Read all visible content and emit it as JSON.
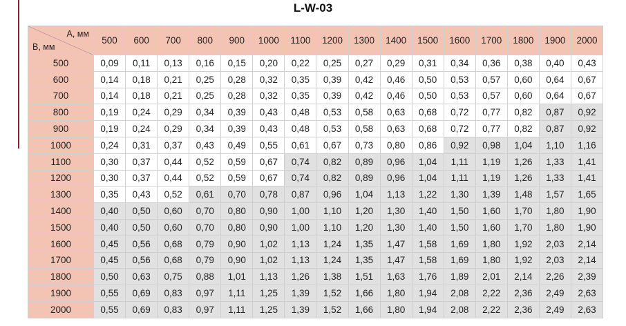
{
  "title": "L-W-03",
  "table": {
    "corner": {
      "col_label": "A, мм",
      "row_label": "B, мм"
    },
    "columns": [
      "500",
      "600",
      "700",
      "800",
      "900",
      "1000",
      "1100",
      "1200",
      "1300",
      "1400",
      "1500",
      "1600",
      "1700",
      "1800",
      "1900",
      "2000"
    ],
    "header_color": "#f3c4b4",
    "shade_color": "#e1e1e1",
    "rows": [
      {
        "label": "500",
        "cells": [
          "0,09",
          "0,11",
          "0,13",
          "0,16",
          "0,15",
          "0,20",
          "0,22",
          "0,25",
          "0,27",
          "0,29",
          "0,31",
          "0,34",
          "0,36",
          "0,38",
          "0,40",
          "0,43"
        ]
      },
      {
        "label": "600",
        "cells": [
          "0,14",
          "0,18",
          "0,21",
          "0,25",
          "0,28",
          "0,32",
          "0,35",
          "0,39",
          "0,42",
          "0,46",
          "0,50",
          "0,53",
          "0,57",
          "0,60",
          "0,64",
          "0,67"
        ]
      },
      {
        "label": "700",
        "cells": [
          "0,14",
          "0,18",
          "0,21",
          "0,25",
          "0,28",
          "0,32",
          "0,35",
          "0,39",
          "0,42",
          "0,46",
          "0,50",
          "0,53",
          "0,57",
          "0,60",
          "0,64",
          "0,67"
        ]
      },
      {
        "label": "800",
        "cells": [
          "0,19",
          "0,24",
          "0,29",
          "0,34",
          "0,39",
          "0,43",
          "0,48",
          "0,53",
          "0,58",
          "0,63",
          "0,68",
          "0,72",
          "0,77",
          "0,82",
          "0,87",
          "0,92"
        ],
        "shaded_from": 14
      },
      {
        "label": "900",
        "cells": [
          "0,19",
          "0,24",
          "0,29",
          "0,34",
          "0,39",
          "0,43",
          "0,48",
          "0,53",
          "0,58",
          "0,63",
          "0,68",
          "0,72",
          "0,77",
          "0,82",
          "0,87",
          "0,92"
        ],
        "shaded_from": 14
      },
      {
        "label": "1000",
        "cells": [
          "0,24",
          "0,31",
          "0,37",
          "0,43",
          "0,49",
          "0,55",
          "0,61",
          "0,67",
          "0,73",
          "0,80",
          "0,86",
          "0,92",
          "0,98",
          "1,04",
          "1,10",
          "1,16"
        ],
        "shaded_from": 11
      },
      {
        "label": "1100",
        "cells": [
          "0,30",
          "0,37",
          "0,44",
          "0,52",
          "0,59",
          "0,67",
          "0,74",
          "0,82",
          "0,89",
          "0,96",
          "1,04",
          "1,11",
          "1,19",
          "1,26",
          "1,33",
          "1,41"
        ],
        "shaded_from": 6
      },
      {
        "label": "1200",
        "cells": [
          "0,30",
          "0,37",
          "0,44",
          "0,52",
          "0,59",
          "0,67",
          "0,74",
          "0,82",
          "0,89",
          "0,96",
          "1,04",
          "1,11",
          "1,19",
          "1,26",
          "1,33",
          "1,41"
        ],
        "shaded_from": 6
      },
      {
        "label": "1300",
        "cells": [
          "0,35",
          "0,43",
          "0,52",
          "0,61",
          "0,70",
          "0,78",
          "0,87",
          "0,96",
          "1,04",
          "1,13",
          "1,22",
          "1,30",
          "1,39",
          "1,48",
          "1,57",
          "1,65"
        ],
        "shaded_from": 3
      },
      {
        "label": "1400",
        "cells": [
          "0,40",
          "0,50",
          "0,60",
          "0,70",
          "0,80",
          "0,90",
          "1,00",
          "1,10",
          "1,20",
          "1,30",
          "1,40",
          "1,50",
          "1,60",
          "1,70",
          "1,80",
          "1,90"
        ],
        "shaded_from": 0
      },
      {
        "label": "1500",
        "cells": [
          "0,40",
          "0,50",
          "0,60",
          "0,70",
          "0,80",
          "0,90",
          "1,00",
          "1,10",
          "1,20",
          "1,30",
          "1,40",
          "1,50",
          "1,60",
          "1,70",
          "1,80",
          "1,90"
        ],
        "shaded_from": 0
      },
      {
        "label": "1600",
        "cells": [
          "0,45",
          "0,56",
          "0,68",
          "0,79",
          "0,90",
          "1,02",
          "1,13",
          "1,24",
          "1,35",
          "1,47",
          "1,58",
          "1,69",
          "1,80",
          "1,92",
          "2,03",
          "2,14"
        ],
        "shaded_from": 0
      },
      {
        "label": "1700",
        "cells": [
          "0,45",
          "0,56",
          "0,68",
          "0,79",
          "0,90",
          "1,02",
          "1,13",
          "1,24",
          "1,35",
          "1,47",
          "1,58",
          "1,69",
          "1,80",
          "1,92",
          "2,03",
          "2,14"
        ],
        "shaded_from": 0
      },
      {
        "label": "1800",
        "cells": [
          "0,50",
          "0,63",
          "0,75",
          "0,88",
          "1,01",
          "1,13",
          "1,26",
          "1,38",
          "1,51",
          "1,63",
          "1,76",
          "1,89",
          "2,01",
          "2,14",
          "2,26",
          "2,39"
        ],
        "shaded_from": 0
      },
      {
        "label": "1900",
        "cells": [
          "0,55",
          "0,69",
          "0,83",
          "0,97",
          "1,11",
          "1,25",
          "1,39",
          "1,52",
          "1,66",
          "1,80",
          "1,94",
          "2,08",
          "2,22",
          "2,36",
          "2,49",
          "2,63"
        ],
        "shaded_from": 0
      },
      {
        "label": "2000",
        "cells": [
          "0,55",
          "0,69",
          "0,83",
          "0,97",
          "1,11",
          "1,25",
          "1,39",
          "1,52",
          "1,66",
          "1,80",
          "1,94",
          "2,08",
          "2,22",
          "2,36",
          "2,49",
          "2,63"
        ],
        "shaded_from": 0
      }
    ]
  }
}
